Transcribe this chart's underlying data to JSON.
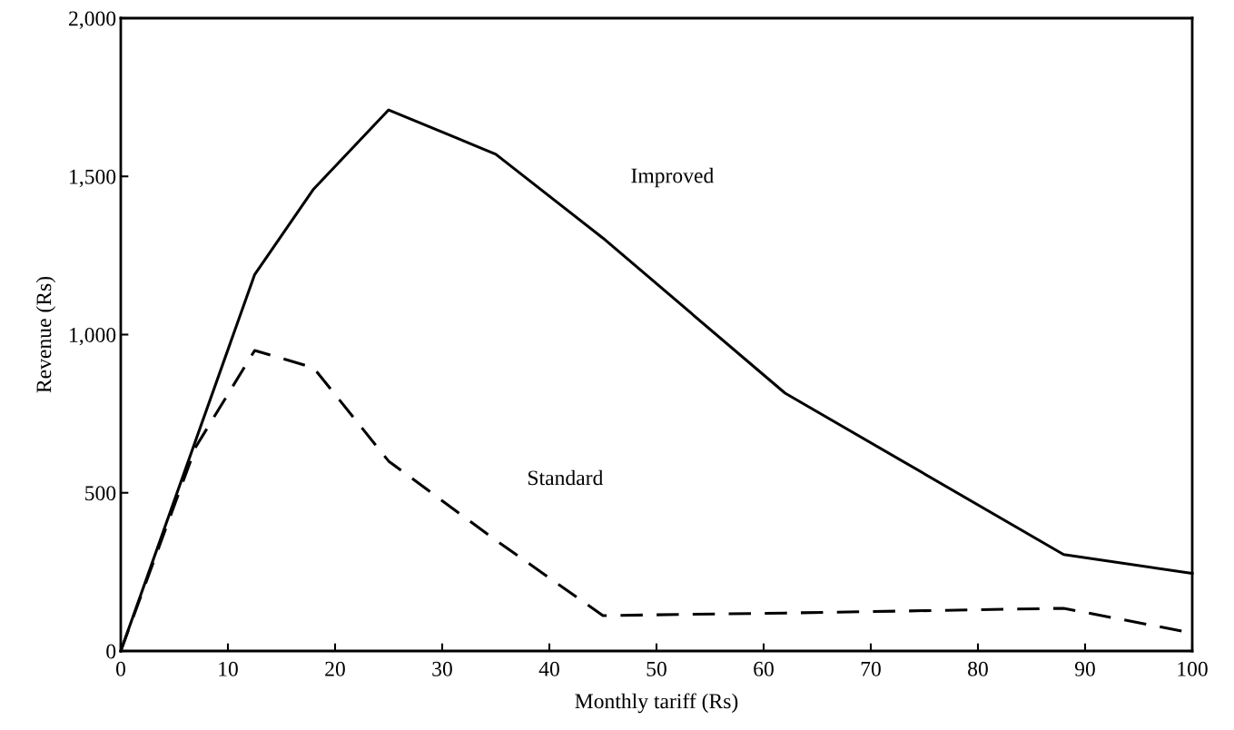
{
  "chart_data": {
    "type": "line",
    "xlabel": "Monthly tariff (Rs)",
    "ylabel": "Revenue (Rs)",
    "xlim": [
      0,
      100
    ],
    "ylim": [
      0,
      2000
    ],
    "xticks": [
      0,
      10,
      20,
      30,
      40,
      50,
      60,
      70,
      80,
      90,
      100
    ],
    "yticks": [
      0,
      {
        "value": 500,
        "label": "500"
      },
      {
        "value": 1000,
        "label": "1,000"
      },
      {
        "value": 1500,
        "label": "1,500"
      },
      {
        "value": 2000,
        "label": "2,000"
      }
    ],
    "grid": false,
    "legend": false,
    "marker": "none",
    "series": [
      {
        "name": "Improved",
        "color": "#000000",
        "line_style": "solid",
        "x": [
          0,
          12.5,
          18,
          25,
          35,
          45,
          62,
          88,
          100
        ],
        "values": [
          0,
          1190,
          1460,
          1710,
          1570,
          1305,
          815,
          305,
          245
        ]
      },
      {
        "name": "Standard",
        "color": "#000000",
        "line_style": "dashed",
        "x": [
          0,
          7,
          12.5,
          18,
          25,
          35,
          45,
          62,
          88,
          100
        ],
        "values": [
          0,
          645,
          950,
          895,
          600,
          350,
          112,
          120,
          135,
          57
        ]
      }
    ]
  }
}
